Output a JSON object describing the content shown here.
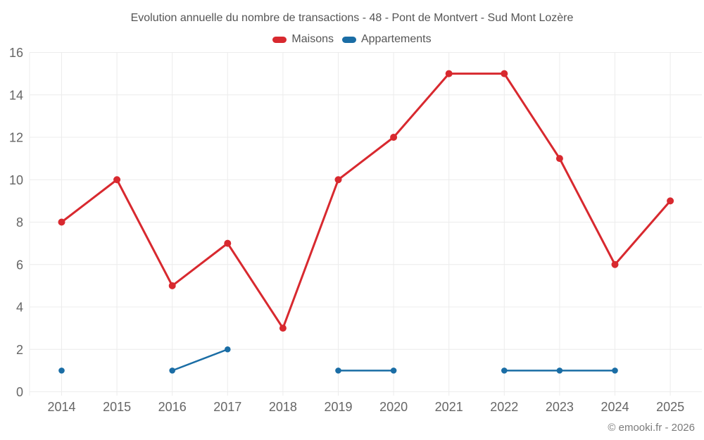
{
  "footer": {
    "copyright": "© emooki.fr - 2026"
  },
  "chart_data": {
    "type": "line",
    "title": "Evolution annuelle du nombre de transactions - 48 - Pont de Montvert - Sud Mont Lozère",
    "categories": [
      "2014",
      "2015",
      "2016",
      "2017",
      "2018",
      "2019",
      "2020",
      "2021",
      "2022",
      "2023",
      "2024",
      "2025"
    ],
    "series": [
      {
        "name": "Maisons",
        "color": "#d8292f",
        "values": [
          8,
          10,
          5,
          7,
          3,
          10,
          12,
          15,
          15,
          11,
          6,
          9
        ]
      },
      {
        "name": "Appartements",
        "color": "#1a6da5",
        "values": [
          1,
          null,
          1,
          2,
          null,
          1,
          1,
          null,
          1,
          1,
          1,
          null
        ]
      }
    ],
    "xlabel": "",
    "ylabel": "",
    "ylim": [
      0,
      16
    ],
    "yticks": [
      0,
      2,
      4,
      6,
      8,
      10,
      12,
      14,
      16
    ],
    "grid": true,
    "legend_position": "top",
    "colors": {
      "grid": "#ececec",
      "axis_text": "#666666",
      "title_text": "#555555",
      "copyright_text": "#7b7b7b",
      "background": "#ffffff"
    }
  }
}
